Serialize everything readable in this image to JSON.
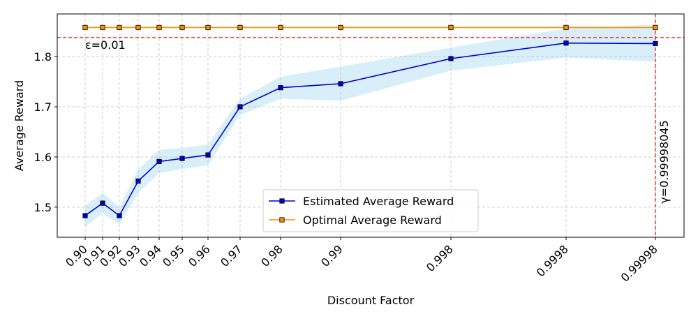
{
  "chart_data": {
    "type": "line",
    "xlabel": "Discount Factor",
    "ylabel": "Average Reward",
    "ylim": [
      1.44,
      1.885
    ],
    "grid": true,
    "legend_position": "lower-center",
    "categories": [
      "0.90",
      "0.91",
      "0.92",
      "0.93",
      "0.94",
      "0.95",
      "0.96",
      "0.97",
      "0.98",
      "0.99",
      "0.998",
      "0.9998",
      "0.99998"
    ],
    "y_ticks": [
      1.5,
      1.6,
      1.7,
      1.8
    ],
    "y_tick_labels": [
      "1.5",
      "1.6",
      "1.7",
      "1.8"
    ],
    "series": [
      {
        "name": "Estimated Average Reward",
        "color": "#0000cd",
        "values": [
          1.483,
          1.508,
          1.483,
          1.552,
          1.591,
          1.597,
          1.604,
          1.7,
          1.738,
          1.746,
          1.796,
          1.827,
          1.826
        ],
        "band_lower": [
          1.46,
          1.488,
          1.465,
          1.528,
          1.568,
          1.576,
          1.583,
          1.684,
          1.716,
          1.712,
          1.772,
          1.798,
          1.79
        ],
        "band_upper": [
          1.503,
          1.528,
          1.5,
          1.575,
          1.614,
          1.618,
          1.625,
          1.716,
          1.76,
          1.78,
          1.818,
          1.856,
          1.864
        ],
        "band_color": "#87ceeb"
      },
      {
        "name": "Optimal Average Reward",
        "color": "#ff8c00",
        "values": [
          1.858,
          1.858,
          1.858,
          1.858,
          1.858,
          1.858,
          1.858,
          1.858,
          1.858,
          1.858,
          1.858,
          1.858,
          1.858
        ]
      }
    ],
    "annotations": {
      "hline_value": 1.838,
      "hline_label": "ε=0.01",
      "vline_category": "0.99998",
      "vline_label": "γ=0.99998045",
      "line_color": "#ff0000"
    }
  }
}
